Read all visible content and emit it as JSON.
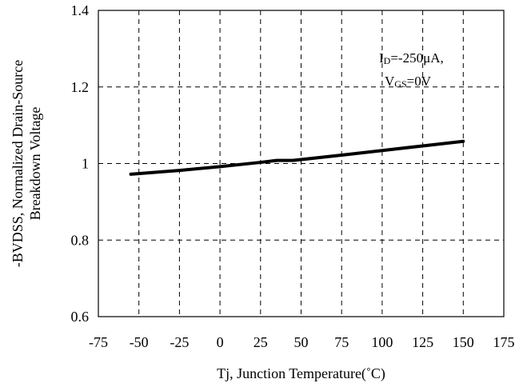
{
  "chart_data": {
    "type": "line",
    "xlabel": "Tj, Junction Temperature(˚C)",
    "ylabel_line1": "-BVDSS, Normalized Drain-Source",
    "ylabel_line2": "Breakdown Voltage",
    "xlim": [
      -75,
      175
    ],
    "ylim": [
      0.6,
      1.4
    ],
    "x_ticks": [
      -75,
      -50,
      -25,
      0,
      25,
      50,
      75,
      100,
      125,
      150,
      175
    ],
    "y_ticks": [
      0.6,
      0.8,
      1,
      1.2,
      1.4
    ],
    "x_tick_labels": [
      "-75",
      "-50",
      "-25",
      "0",
      "25",
      "50",
      "75",
      "100",
      "125",
      "150",
      "175"
    ],
    "y_tick_labels": [
      "0.6",
      "0.8",
      "1",
      "1.2",
      "1.4"
    ],
    "grid": true,
    "grid_style": "dashed",
    "series": [
      {
        "x": [
          -55,
          -25,
          0,
          25,
          35,
          45,
          75,
          100,
          125,
          150
        ],
        "y": [
          0.972,
          0.982,
          0.992,
          1.003,
          1.008,
          1.008,
          1.022,
          1.034,
          1.046,
          1.058
        ],
        "color": "#000000"
      }
    ],
    "annotation": {
      "line1_main": "I",
      "line1_sub": "D",
      "line1_rest": "=-250μA,",
      "line2_main": "V",
      "line2_sub": "GS",
      "line2_rest": "=0V"
    }
  }
}
